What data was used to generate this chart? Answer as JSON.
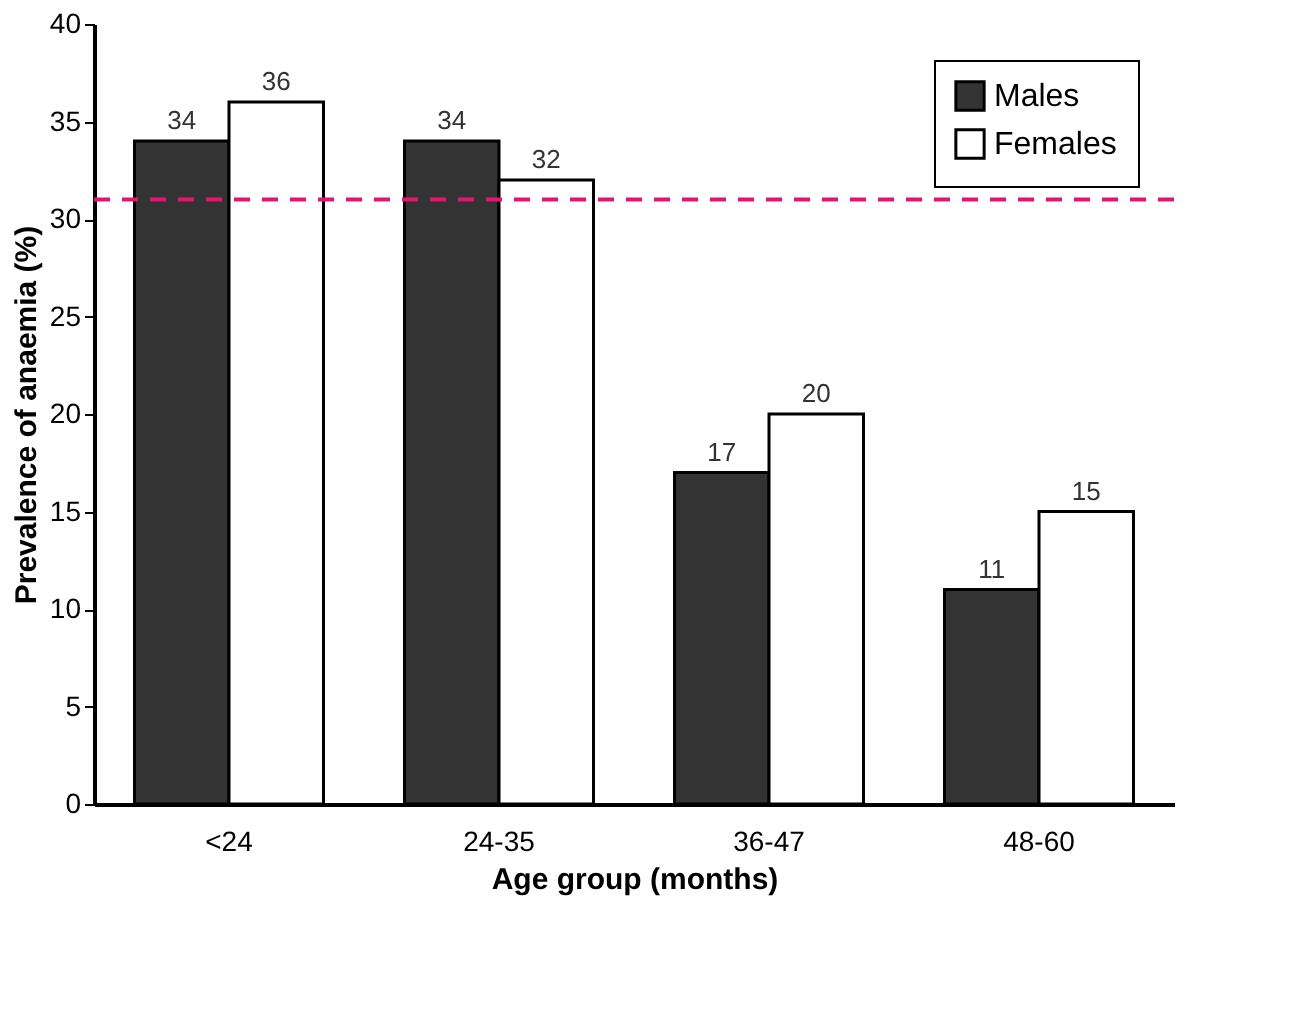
{
  "chart_data": {
    "type": "bar",
    "xlabel": "Age group (months)",
    "ylabel": "Prevalence of anaemia (%)",
    "categories": [
      "<24",
      "24-35",
      "36-47",
      "48-60"
    ],
    "series": [
      {
        "name": "Males",
        "color": "#333333",
        "values": [
          34,
          34,
          17,
          11
        ]
      },
      {
        "name": "Females",
        "color": "#ffffff",
        "values": [
          36,
          32,
          20,
          15
        ]
      }
    ],
    "ylim": [
      0,
      40
    ],
    "yticks": [
      0,
      5,
      10,
      15,
      20,
      25,
      30,
      35,
      40
    ],
    "data_labels": true,
    "grid": false,
    "legend": "top right",
    "ref_lines": [
      {
        "axis": "y",
        "value": 31,
        "color": "#e8146c",
        "line_style": "dashed"
      }
    ]
  }
}
